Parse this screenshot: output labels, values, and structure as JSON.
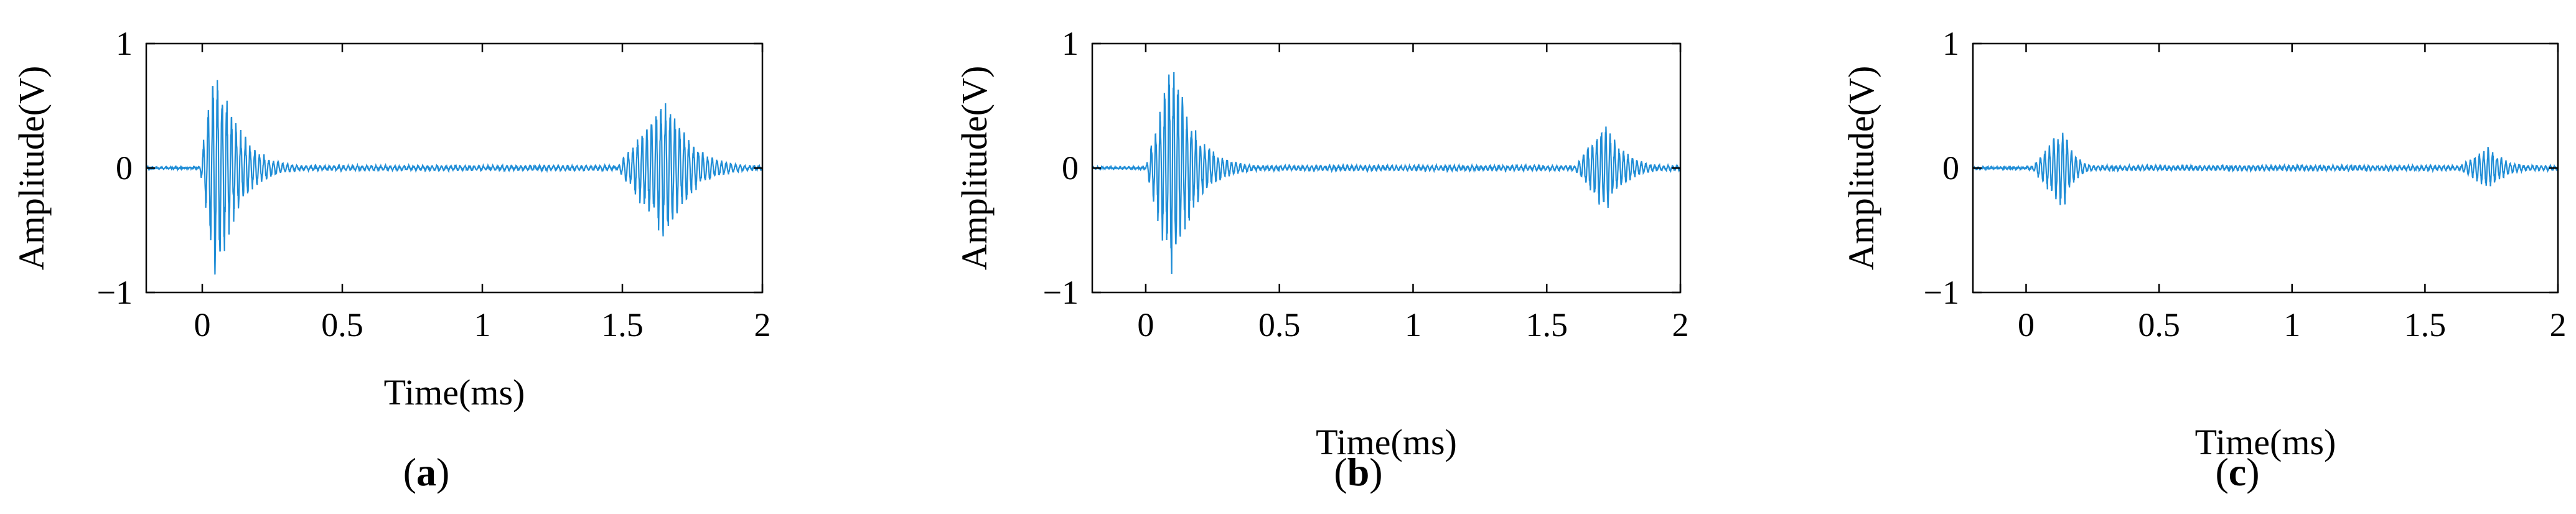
{
  "chart_data": [
    {
      "type": "line",
      "caption_open": "(",
      "caption_letter": "a",
      "caption_close": ")",
      "xlabel": "Time(ms)",
      "ylabel": "Amplitude(V)",
      "xlim": [
        -0.2,
        2.0
      ],
      "ylim": [
        -1,
        1
      ],
      "xticks": [
        0,
        0.5,
        1,
        1.5,
        2
      ],
      "xtick_labels": [
        "0",
        "0.5",
        "1",
        "1.5",
        "2"
      ],
      "yticks": [
        -1,
        0,
        1
      ],
      "ytick_labels": [
        "−1",
        "0",
        "1"
      ],
      "grid": false,
      "series": [
        {
          "color": "#1f8dd6",
          "bursts": [
            {
              "start": -0.01,
              "peak": 0.05,
              "end": 0.36,
              "amp": 0.97
            },
            {
              "start": 1.48,
              "peak": 1.66,
              "end": 2.0,
              "amp": 0.62
            }
          ],
          "noise": 0.02
        }
      ]
    },
    {
      "type": "line",
      "caption_open": "(",
      "caption_letter": "b",
      "caption_close": ")",
      "xlabel": "Time(ms)",
      "ylabel": "Amplitude(V)",
      "xlim": [
        -0.2,
        2.0
      ],
      "ylim": [
        -1,
        1
      ],
      "xticks": [
        0,
        0.5,
        1,
        1.5,
        2
      ],
      "xtick_labels": [
        "0",
        "0.5",
        "1",
        "1.5",
        "2"
      ],
      "yticks": [
        -1,
        0,
        1
      ],
      "ytick_labels": [
        "−1",
        "0",
        "1"
      ],
      "grid": false,
      "series": [
        {
          "color": "#1f8dd6",
          "bursts": [
            {
              "start": 0.0,
              "peak": 0.1,
              "end": 0.42,
              "amp": 0.97
            },
            {
              "start": 1.6,
              "peak": 1.72,
              "end": 2.0,
              "amp": 0.38
            }
          ],
          "noise": 0.02
        }
      ]
    },
    {
      "type": "line",
      "caption_open": "(",
      "caption_letter": "c",
      "caption_close": ")",
      "xlabel": "Time(ms)",
      "ylabel": "Amplitude(V)",
      "xlim": [
        -0.2,
        2.0
      ],
      "ylim": [
        -1,
        1
      ],
      "xticks": [
        0,
        0.5,
        1,
        1.5,
        2
      ],
      "xtick_labels": [
        "0",
        "0.5",
        "1",
        "1.5",
        "2"
      ],
      "yticks": [
        -1,
        0,
        1
      ],
      "ytick_labels": [
        "−1",
        "0",
        "1"
      ],
      "grid": false,
      "series": [
        {
          "color": "#1f8dd6",
          "bursts": [
            {
              "start": 0.02,
              "peak": 0.14,
              "end": 0.3,
              "amp": 0.36
            },
            {
              "start": 1.62,
              "peak": 1.74,
              "end": 2.0,
              "amp": 0.18
            }
          ],
          "noise": 0.02
        }
      ]
    }
  ]
}
